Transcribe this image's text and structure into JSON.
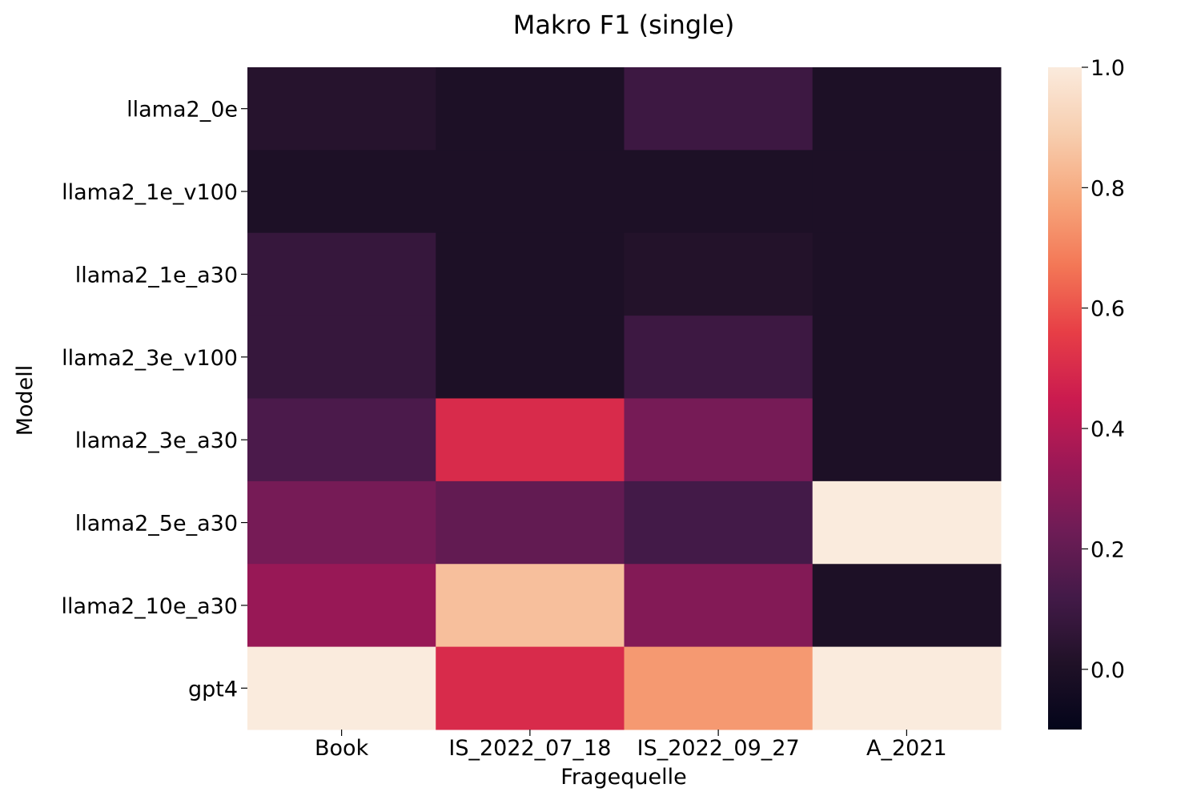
{
  "chart_data": {
    "type": "heatmap",
    "title": "Makro F1 (single)",
    "xlabel": "Fragequelle",
    "ylabel": "Modell",
    "x_categories": [
      "Book",
      "IS_2022_07_18",
      "IS_2022_09_27",
      "A_2021"
    ],
    "y_categories": [
      "llama2_0e",
      "llama2_1e_v100",
      "llama2_1e_a30",
      "llama2_3e_v100",
      "llama2_3e_a30",
      "llama2_5e_a30",
      "llama2_10e_a30",
      "gpt4"
    ],
    "values": [
      [
        0.03,
        0.0,
        0.1,
        0.0
      ],
      [
        0.0,
        0.0,
        0.0,
        0.0
      ],
      [
        0.08,
        0.0,
        0.02,
        0.0
      ],
      [
        0.08,
        0.0,
        0.1,
        0.0
      ],
      [
        0.14,
        0.5,
        0.25,
        0.0
      ],
      [
        0.25,
        0.2,
        0.12,
        1.0
      ],
      [
        0.33,
        0.85,
        0.28,
        0.0
      ],
      [
        1.0,
        0.5,
        0.75,
        1.0
      ]
    ],
    "colorbar": {
      "vmin": -0.1,
      "vmax": 1.0,
      "ticks": [
        0.0,
        0.2,
        0.4,
        0.6,
        0.8,
        1.0
      ],
      "tick_labels": [
        "0.0",
        "0.2",
        "0.4",
        "0.6",
        "0.8",
        "1.0"
      ],
      "colormap": "rocket"
    },
    "grid": false
  }
}
